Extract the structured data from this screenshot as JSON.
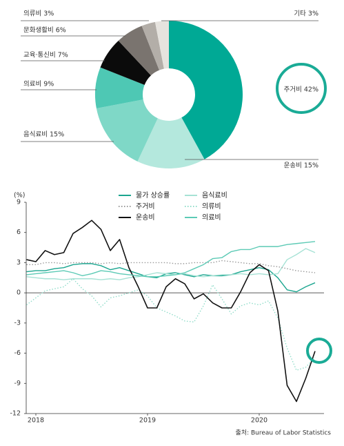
{
  "chart_data": [
    {
      "type": "pie",
      "values": [
        42,
        15,
        15,
        9,
        7,
        6,
        3,
        3
      ],
      "value_labels": [
        "주거비 42%",
        "운송비 15%",
        "음식료비 15%",
        "의료비 9%",
        "교육·통신비 7%",
        "문화생활비 6%",
        "의류비 3%",
        "기타 3%"
      ],
      "colors": [
        "#00a995",
        "#b4e8dd",
        "#7fd8c7",
        "#4ec8b4",
        "#0b0b0b",
        "#7a746f",
        "#b3aea8",
        "#e6e3de"
      ]
    },
    {
      "type": "line",
      "ylabel": "(%)",
      "source": "출처: Bureau of Labor Statistics",
      "categories": [
        null,
        "2018",
        null,
        null,
        null,
        null,
        null,
        null,
        null,
        null,
        null,
        null,
        null,
        "2019",
        null,
        null,
        null,
        null,
        null,
        null,
        null,
        null,
        null,
        null,
        null,
        "2020",
        null,
        null,
        null,
        null,
        null,
        null
      ],
      "ylim": [
        -12,
        9
      ],
      "yticks": [
        -12,
        -9,
        -6,
        -3,
        0,
        3,
        6,
        9
      ],
      "series": [
        {
          "name": "물가 상승률",
          "color": "#1aa58f",
          "style": "solid",
          "values": [
            2.1,
            2.2,
            2.2,
            2.4,
            2.5,
            2.8,
            2.9,
            2.9,
            2.7,
            2.3,
            2.5,
            2.2,
            1.9,
            1.6,
            1.5,
            1.9,
            2.0,
            1.8,
            1.6,
            1.8,
            1.7,
            1.7,
            1.8,
            2.1,
            2.3,
            2.5,
            2.3,
            1.5,
            0.3,
            0.1,
            0.6,
            1.0
          ]
        },
        {
          "name": "음식료비",
          "color": "#a6e2d5",
          "style": "solid",
          "values": [
            1.6,
            1.5,
            1.4,
            1.4,
            1.3,
            1.4,
            1.4,
            1.4,
            1.3,
            1.4,
            1.3,
            1.5,
            1.6,
            1.8,
            2.0,
            1.9,
            1.8,
            1.9,
            1.7,
            1.6,
            1.7,
            1.8,
            1.8,
            1.9,
            1.8,
            1.9,
            1.8,
            1.9,
            3.3,
            3.8,
            4.4,
            4.0
          ]
        },
        {
          "name": "주거비",
          "color": "#999999",
          "style": "dotted",
          "values": [
            2.8,
            2.8,
            3.0,
            3.0,
            2.9,
            3.0,
            3.0,
            3.0,
            2.9,
            3.0,
            2.9,
            3.0,
            3.0,
            3.0,
            3.0,
            3.0,
            2.9,
            2.9,
            3.0,
            3.0,
            3.0,
            3.2,
            3.1,
            3.0,
            2.9,
            2.9,
            2.7,
            2.6,
            2.4,
            2.2,
            2.1,
            2.0
          ]
        },
        {
          "name": "의류비",
          "color": "#8fdcc9",
          "style": "dotted",
          "values": [
            -1.2,
            -0.5,
            0.2,
            0.4,
            0.6,
            1.4,
            0.4,
            -0.3,
            -1.4,
            -0.5,
            -0.3,
            0.0,
            0.3,
            -0.3,
            -1.5,
            -1.9,
            -2.3,
            -2.8,
            -2.9,
            -1.3,
            0.8,
            -0.6,
            -2.1,
            -1.3,
            -1.0,
            -1.2,
            -0.8,
            -2.5,
            -5.5,
            -7.7,
            -7.4,
            -6.4
          ]
        },
        {
          "name": "운송비",
          "color": "#111111",
          "style": "solid",
          "values": [
            3.3,
            3.1,
            4.2,
            3.8,
            4.0,
            5.9,
            6.5,
            7.2,
            6.3,
            4.2,
            5.3,
            2.5,
            0.6,
            -1.5,
            -1.5,
            0.6,
            1.4,
            0.9,
            -0.6,
            -0.1,
            -1.0,
            -1.5,
            -1.5,
            0.1,
            2.0,
            2.8,
            2.2,
            -1.8,
            -9.2,
            -10.8,
            -8.5,
            -5.8
          ]
        },
        {
          "name": "의료비",
          "color": "#5ccab5",
          "style": "solid",
          "values": [
            1.8,
            1.9,
            2.0,
            2.1,
            2.2,
            2.0,
            1.7,
            1.9,
            2.2,
            2.1,
            1.9,
            1.8,
            1.7,
            1.6,
            1.6,
            1.7,
            1.8,
            2.0,
            2.4,
            2.8,
            3.4,
            3.5,
            4.1,
            4.3,
            4.3,
            4.6,
            4.6,
            4.6,
            4.8,
            4.9,
            5.0,
            5.1
          ]
        }
      ]
    }
  ]
}
